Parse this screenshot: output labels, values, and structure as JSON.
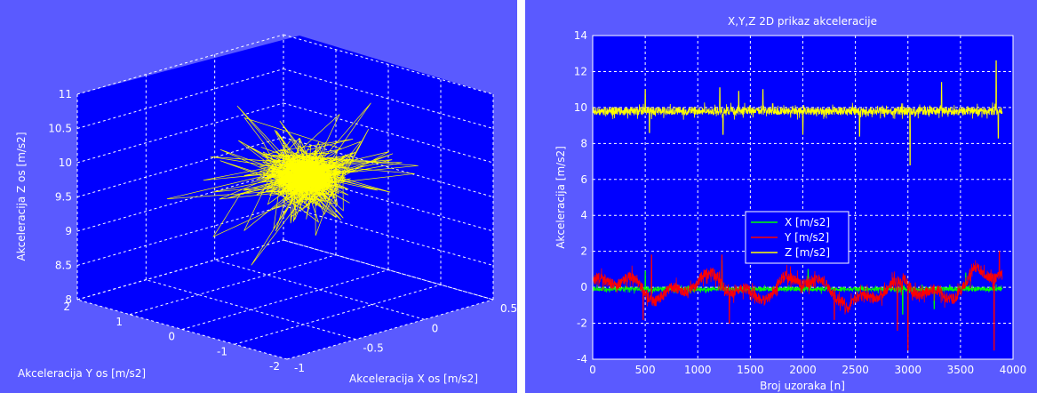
{
  "chart_data": [
    {
      "type": "line",
      "projection": "3d",
      "title": "",
      "xlabel": "Akceleracija X os [m/s2]",
      "ylabel": "Akceleracija Y os [m/s2]",
      "zlabel": "Akceleracija Z os [m/s2]",
      "xticks": [
        "-1",
        "-0.5",
        "0",
        "0.5"
      ],
      "yticks": [
        "-2",
        "-1",
        "0",
        "1",
        "2"
      ],
      "zticks": [
        "8",
        "8.5",
        "9",
        "9.5",
        "10",
        "10.5",
        "11"
      ],
      "xlim": [
        -1,
        0.5
      ],
      "ylim": [
        -2,
        2
      ],
      "zlim": [
        8,
        11
      ],
      "grid": true,
      "series": [
        {
          "color": "#ffff00",
          "n_points": 3900,
          "x_center": -0.1,
          "y_center": 0.0,
          "z_center": 9.7,
          "z_range_observed": [
            8.3,
            10.9
          ]
        }
      ],
      "colors": {
        "figure_bg": "#5a5aff",
        "axes_bg": "#0000ff",
        "grid": "#ffffff",
        "series": "#ffff00"
      }
    },
    {
      "type": "line",
      "title": "X,Y,Z 2D prikaz akceleracije",
      "xlabel": "Broj uzoraka [n]",
      "ylabel": "Akceleracija [m/s2]",
      "xlim": [
        0,
        4000
      ],
      "ylim": [
        -4,
        14
      ],
      "xticks": [
        "0",
        "500",
        "1000",
        "1500",
        "2000",
        "2500",
        "3000",
        "3500",
        "4000"
      ],
      "yticks": [
        "-4",
        "-2",
        "0",
        "2",
        "4",
        "6",
        "8",
        "10",
        "12",
        "14"
      ],
      "grid": true,
      "legend": {
        "placement": "center-left",
        "entries": [
          "X [m/s2]",
          "Y [m/s2]",
          "Z [m/s2]"
        ]
      },
      "series": [
        {
          "name": "X [m/s2]",
          "color": "#00ff00",
          "mean": -0.1,
          "spikes": [
            [
              500,
              0.9
            ],
            [
              1230,
              1.5
            ],
            [
              2050,
              1.0
            ],
            [
              2950,
              -1.5
            ],
            [
              3250,
              -1.2
            ],
            [
              3550,
              0.8
            ]
          ]
        },
        {
          "name": "Y [m/s2]",
          "color": "#ff0000",
          "mean": 0.0,
          "spikes": [
            [
              480,
              -1.8
            ],
            [
              560,
              1.8
            ],
            [
              1230,
              1.8
            ],
            [
              1300,
              -2.0
            ],
            [
              2300,
              -1.8
            ],
            [
              2900,
              -2.4
            ],
            [
              3000,
              -3.5
            ],
            [
              3820,
              -3.5
            ],
            [
              3870,
              2.0
            ]
          ]
        },
        {
          "name": "Z [m/s2]",
          "color": "#ffff00",
          "mean": 9.8,
          "spikes": [
            [
              500,
              11.0
            ],
            [
              540,
              8.6
            ],
            [
              1210,
              11.1
            ],
            [
              1240,
              8.5
            ],
            [
              1390,
              10.9
            ],
            [
              1620,
              11.0
            ],
            [
              2000,
              8.5
            ],
            [
              2540,
              8.4
            ],
            [
              3020,
              6.8
            ],
            [
              3320,
              11.4
            ],
            [
              3840,
              12.6
            ],
            [
              3860,
              8.3
            ]
          ]
        }
      ],
      "colors": {
        "figure_bg": "#5a5aff",
        "axes_bg": "#0000ff",
        "grid": "#ffffff"
      }
    }
  ]
}
